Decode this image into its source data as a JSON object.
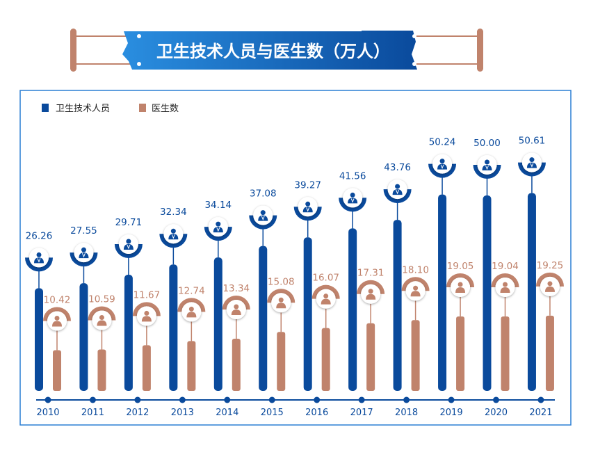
{
  "chart_data": {
    "type": "bar",
    "title": "卫生技术人员与医生数（万人）",
    "categories": [
      "2010",
      "2011",
      "2012",
      "2013",
      "2014",
      "2015",
      "2016",
      "2017",
      "2018",
      "2019",
      "2020",
      "2021"
    ],
    "series": [
      {
        "name": "卫生技术人员",
        "color": "#0a4a9c",
        "values": [
          26.26,
          27.55,
          29.71,
          32.34,
          34.14,
          37.08,
          39.27,
          41.56,
          43.76,
          50.24,
          50.0,
          50.61
        ],
        "labels": [
          "26.26",
          "27.55",
          "29.71",
          "32.34",
          "34.14",
          "37.08",
          "39.27",
          "41.56",
          "43.76",
          "50.24",
          "50.00",
          "50.61"
        ],
        "icon": "doctor-icon"
      },
      {
        "name": "医生数",
        "color": "#c0836c",
        "values": [
          10.42,
          10.59,
          11.67,
          12.74,
          13.34,
          15.08,
          16.07,
          17.31,
          18.1,
          19.05,
          19.04,
          19.25
        ],
        "labels": [
          "10.42",
          "10.59",
          "11.67",
          "12.74",
          "13.34",
          "15.08",
          "16.07",
          "17.31",
          "18.10",
          "19.05",
          "19.04",
          "19.25"
        ],
        "icon": "person-icon"
      }
    ],
    "ylim": [
      0,
      55
    ],
    "legend": "top-left",
    "grid": false
  }
}
